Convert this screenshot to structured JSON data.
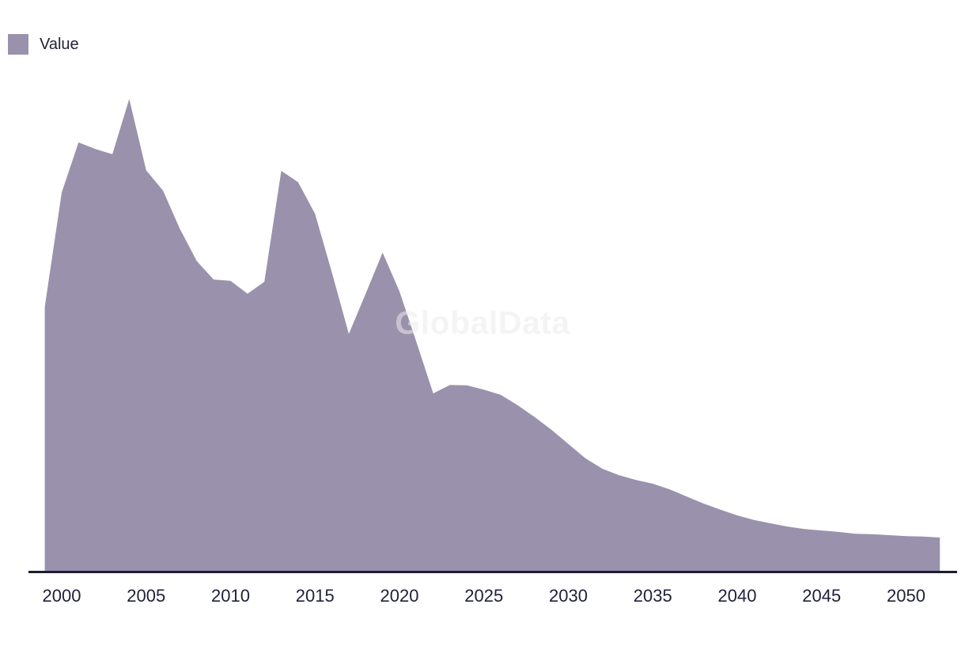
{
  "legend": {
    "label": "Value"
  },
  "watermark": {
    "text": "GlobalData"
  },
  "colors": {
    "background": "#ffffff",
    "area_fill": "#9a92ac",
    "axis_line": "#1c1d33",
    "tick_text": "#20223a",
    "legend_text": "#1f2133",
    "watermark_text": "rgba(235,235,235,0.55)"
  },
  "chart_data": {
    "type": "area",
    "title": "",
    "xlabel": "",
    "ylabel": "",
    "grid": false,
    "legend_position": "top-left",
    "y_axis_visible": false,
    "values_unit": "relative units (peak = 100); no y-axis shown in chart",
    "x_range": [
      1999,
      2052
    ],
    "ylim": [
      0,
      110
    ],
    "x_tick_labels": [
      "2000",
      "2005",
      "2010",
      "2015",
      "2020",
      "2025",
      "2030",
      "2035",
      "2040",
      "2045",
      "2050"
    ],
    "x_tick_years": [
      2000,
      2005,
      2010,
      2015,
      2020,
      2025,
      2030,
      2035,
      2040,
      2045,
      2050
    ],
    "series": [
      {
        "name": "Value",
        "x": [
          1999,
          2000,
          2001,
          2002,
          2003,
          2004,
          2005,
          2006,
          2007,
          2008,
          2009,
          2010,
          2011,
          2012,
          2013,
          2014,
          2015,
          2016,
          2017,
          2018,
          2019,
          2020,
          2021,
          2022,
          2023,
          2024,
          2025,
          2026,
          2027,
          2028,
          2029,
          2030,
          2031,
          2032,
          2033,
          2034,
          2035,
          2036,
          2037,
          2038,
          2039,
          2040,
          2041,
          2042,
          2043,
          2044,
          2045,
          2046,
          2047,
          2048,
          2049,
          2050,
          2051,
          2052
        ],
        "values": [
          56.0,
          80.2,
          90.8,
          89.4,
          88.3,
          100.0,
          84.9,
          80.6,
          72.5,
          65.7,
          61.8,
          61.5,
          58.8,
          61.3,
          84.8,
          82.4,
          75.7,
          63.3,
          50.3,
          58.8,
          67.5,
          59.3,
          48.6,
          37.7,
          39.5,
          39.4,
          38.5,
          37.4,
          35.2,
          32.7,
          30.0,
          27.0,
          24.0,
          21.8,
          20.4,
          19.4,
          18.6,
          17.4,
          15.9,
          14.4,
          13.1,
          11.9,
          10.9,
          10.2,
          9.5,
          9.0,
          8.7,
          8.4,
          8.0,
          7.9,
          7.7,
          7.5,
          7.4,
          7.2
        ]
      }
    ]
  }
}
